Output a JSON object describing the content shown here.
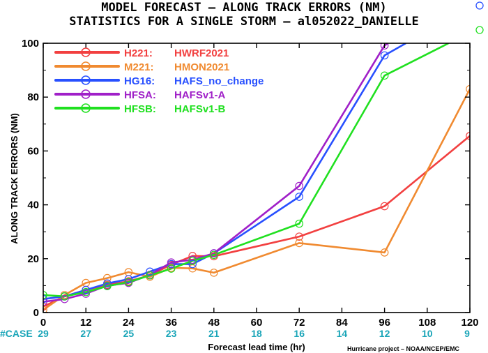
{
  "chart_data": {
    "type": "line",
    "title": "MODEL FORECAST – ALONG TRACK ERRORS (NM)",
    "subtitle": "STATISTICS FOR A SINGLE STORM – al052022_DANIELLE",
    "xlabel": "Forecast lead time (hr)",
    "ylabel": "ALONG TRACK ERRORS (NM)",
    "xlim": [
      0,
      120
    ],
    "ylim": [
      0,
      100
    ],
    "x_ticks": [
      0,
      12,
      24,
      36,
      48,
      60,
      72,
      84,
      96,
      108,
      120
    ],
    "y_ticks": [
      0,
      20,
      40,
      60,
      80,
      100
    ],
    "grid": false,
    "legend_position": "top-left",
    "case_label": "#CASE",
    "case_x": [
      0,
      12,
      24,
      36,
      48,
      60,
      72,
      84,
      96,
      108,
      120
    ],
    "case_counts": [
      "29",
      "27",
      "25",
      "23",
      "21",
      "18",
      "16",
      "14",
      "12",
      "10",
      "9"
    ],
    "credit": "Hurricane project – NOAA/NCEP/EMC",
    "series": [
      {
        "name": "H221:",
        "model": "HWRF2021",
        "color": "#f24040",
        "x": [
          0,
          6,
          12,
          18,
          24,
          30,
          36,
          42,
          48,
          72,
          96,
          120
        ],
        "y": [
          2.2,
          6.0,
          8.4,
          10.3,
          11.6,
          13.8,
          17.8,
          21.0,
          20.9,
          28.2,
          39.5,
          65.6
        ]
      },
      {
        "name": "M221:",
        "model": "HMON2021",
        "color": "#f08a30",
        "x": [
          0,
          6,
          12,
          18,
          24,
          30,
          36,
          42,
          48,
          72,
          96,
          120
        ],
        "y": [
          1.0,
          6.5,
          11.0,
          12.8,
          15.0,
          13.3,
          16.6,
          16.4,
          14.8,
          25.8,
          22.3,
          83.0
        ]
      },
      {
        "name": "HG16:",
        "model": "HAFS_no_change",
        "color": "#2850ff",
        "x": [
          0,
          6,
          12,
          18,
          24,
          30,
          36,
          42,
          48,
          72,
          96,
          102
        ],
        "y": [
          5.0,
          6.0,
          8.4,
          10.8,
          12.4,
          15.2,
          18.0,
          18.0,
          22.0,
          43.0,
          95.5,
          100
        ]
      },
      {
        "name": "HFSA:",
        "model": "HAFSv1-A",
        "color": "#a020c8",
        "x": [
          0,
          6,
          12,
          18,
          24,
          30,
          36,
          42,
          48,
          72,
          96,
          97
        ],
        "y": [
          4.0,
          5.0,
          7.0,
          10.0,
          11.0,
          14.0,
          18.6,
          19.6,
          22.0,
          47.0,
          99.2,
          100
        ]
      },
      {
        "name": "HFSB:",
        "model": "HAFSv1-B",
        "color": "#20e020",
        "x": [
          0,
          6,
          12,
          18,
          24,
          30,
          36,
          42,
          48,
          72,
          96,
          114
        ],
        "y": [
          6.5,
          6.0,
          7.6,
          9.8,
          11.3,
          13.8,
          16.3,
          19.2,
          21.4,
          33.0,
          88.0,
          100
        ]
      }
    ]
  }
}
